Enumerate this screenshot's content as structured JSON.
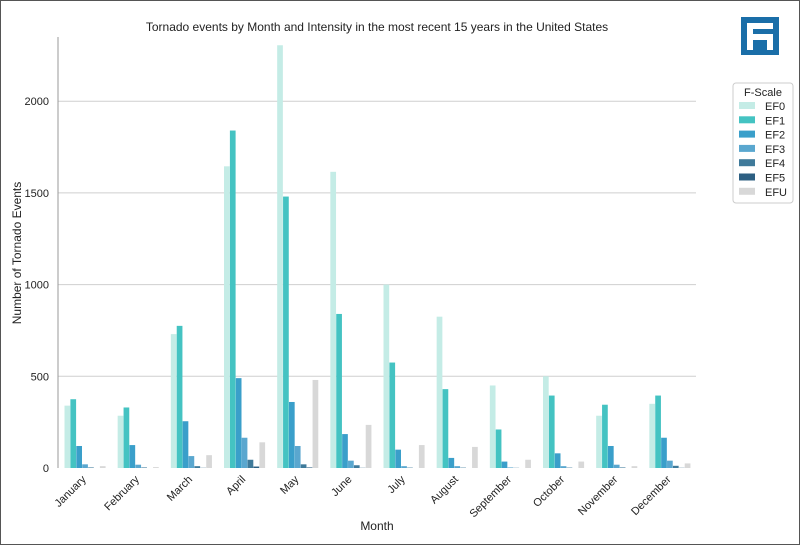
{
  "chart_data": {
    "type": "bar",
    "title": "Tornado events by Month and Intensity in the most recent 15 years in the United States",
    "xlabel": "Month",
    "ylabel": "Number of Tornado Events",
    "ylim": [
      0,
      2350
    ],
    "yticks": [
      0,
      500,
      1000,
      1500,
      2000
    ],
    "grid": true,
    "legend_title": "F-Scale",
    "legend_position": "top-right",
    "categories": [
      "January",
      "February",
      "March",
      "April",
      "May",
      "June",
      "July",
      "August",
      "September",
      "October",
      "November",
      "December"
    ],
    "series": [
      {
        "name": "EF0",
        "color": "#c4ece6",
        "values": [
          340,
          285,
          730,
          1645,
          2305,
          1615,
          1000,
          825,
          450,
          500,
          285,
          350
        ]
      },
      {
        "name": "EF1",
        "color": "#44c3c2",
        "values": [
          375,
          330,
          775,
          1840,
          1480,
          840,
          575,
          430,
          210,
          395,
          345,
          395
        ]
      },
      {
        "name": "EF2",
        "color": "#3a9fca",
        "values": [
          120,
          125,
          255,
          490,
          360,
          185,
          100,
          55,
          35,
          80,
          120,
          165
        ]
      },
      {
        "name": "EF3",
        "color": "#5aa7cf",
        "values": [
          20,
          18,
          65,
          165,
          120,
          40,
          10,
          10,
          3,
          10,
          18,
          40
        ]
      },
      {
        "name": "EF4",
        "color": "#3f7a9a",
        "values": [
          3,
          3,
          10,
          45,
          20,
          15,
          2,
          2,
          1,
          2,
          3,
          12
        ]
      },
      {
        "name": "EF5",
        "color": "#2d5f82",
        "values": [
          0,
          0,
          1,
          8,
          3,
          1,
          0,
          0,
          0,
          0,
          0,
          1
        ]
      },
      {
        "name": "EFU",
        "color": "#d8d8d8",
        "values": [
          10,
          5,
          70,
          140,
          480,
          235,
          125,
          115,
          45,
          35,
          10,
          25
        ]
      }
    ]
  },
  "logo": {
    "name": "company-logo",
    "color": "#1a6ea8"
  }
}
